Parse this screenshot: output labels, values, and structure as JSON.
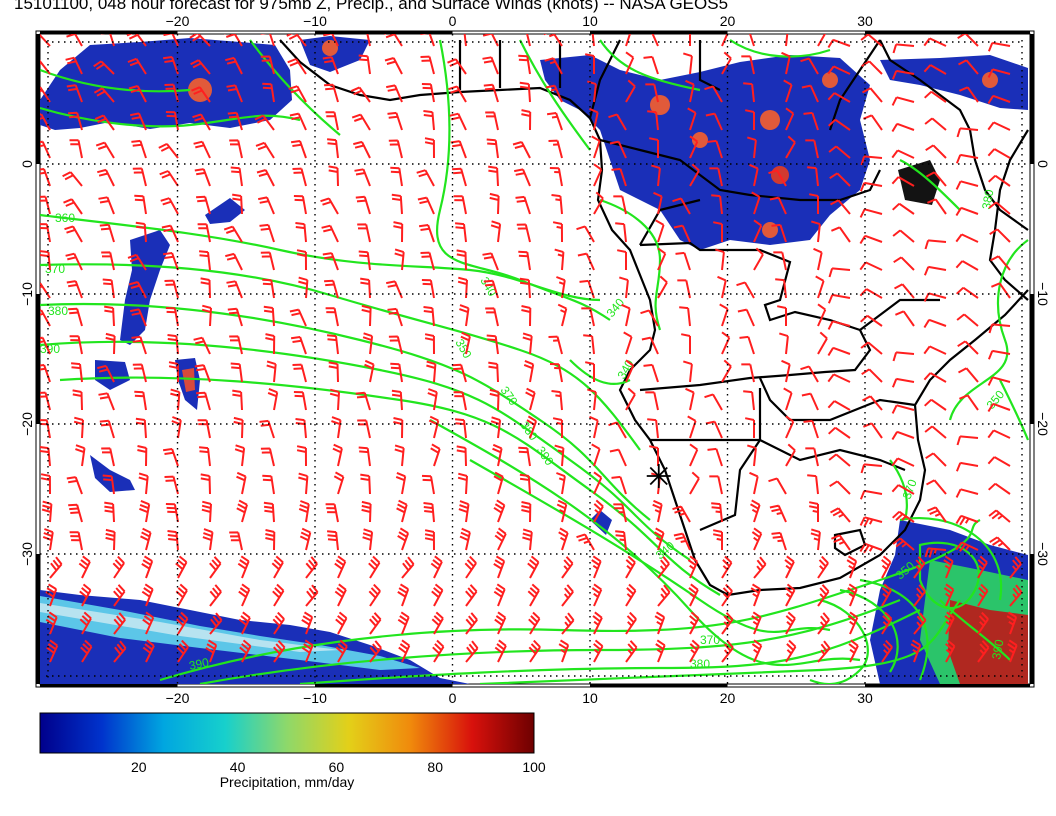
{
  "title": "15101100, 048 hour forecast for 975mb Z, Precip., and Surface Winds (knots) -- NASA GEOS5",
  "map": {
    "lon_range": [
      -30,
      42
    ],
    "lat_range": [
      -40,
      10
    ],
    "lon_ticks": [
      -20,
      -10,
      0,
      10,
      20,
      30
    ],
    "lon_tick_labels": [
      "−20",
      "−10",
      "0",
      "10",
      "20",
      "30"
    ],
    "lat_ticks": [
      0,
      -10,
      -20,
      -30
    ],
    "lat_tick_labels": [
      "0",
      "−10",
      "−20",
      "−30"
    ],
    "grid_style": "dotted",
    "contour_labels": [
      "360",
      "370",
      "380",
      "390",
      "340",
      "350",
      "370",
      "380",
      "390",
      "340",
      "340",
      "350",
      "390",
      "380",
      "370",
      "390",
      "380",
      "370",
      "350",
      "340"
    ],
    "station_marker": {
      "lon": 15,
      "lat": -24,
      "symbol": "star"
    },
    "colors": {
      "contour": "#22e51e",
      "wind_barb": "#ff1f1f",
      "coast": "#000000",
      "precip_low": "#1a2fb8",
      "precip_high": "#c01010"
    }
  },
  "colorbar": {
    "ticks": [
      "20",
      "40",
      "60",
      "80",
      "100"
    ],
    "range": [
      0,
      100
    ],
    "label": "Precipitation, mm/day",
    "stops": [
      "#00008b",
      "#0033cc",
      "#00a6e0",
      "#17d0cc",
      "#8ed86a",
      "#e3d019",
      "#f08a0c",
      "#d8110c",
      "#6e0000"
    ]
  }
}
